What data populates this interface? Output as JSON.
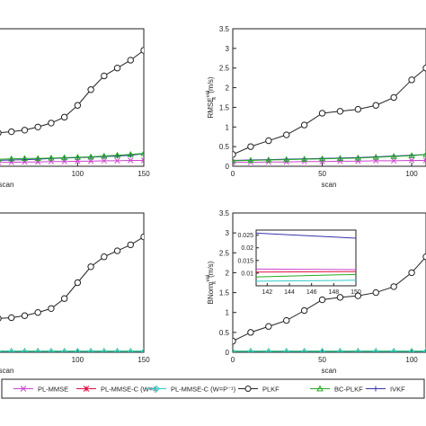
{
  "figure": {
    "legend": [
      {
        "name": "PL-MMSE",
        "color": "#cc44cc",
        "marker": "x"
      },
      {
        "name": "PL-MMSE-C (W=I)",
        "color": "#dd1144",
        "marker": "star"
      },
      {
        "name": "PL-MMSE-C (W=P⁻¹)",
        "color": "#33cccc",
        "marker": "diamond"
      },
      {
        "name": "PLKF",
        "color": "#222222",
        "marker": "circle"
      },
      {
        "name": "BC-PLKF",
        "color": "#22aa22",
        "marker": "triangle"
      },
      {
        "name": "IVKF",
        "color": "#3333aa",
        "marker": "plus"
      }
    ]
  },
  "chart_data": [
    {
      "type": "line",
      "title": "",
      "xlabel": "scan",
      "ylabel": "",
      "xlim": [
        40,
        150
      ],
      "ylim": [
        0,
        3.5
      ],
      "xticks": [
        100,
        150
      ],
      "yticks": [],
      "x": [
        40,
        50,
        60,
        70,
        80,
        90,
        100,
        110,
        120,
        130,
        140,
        150
      ],
      "series": [
        {
          "name": "PLKF",
          "values": [
            0.85,
            0.88,
            0.92,
            1.0,
            1.1,
            1.25,
            1.55,
            1.95,
            2.3,
            2.5,
            2.7,
            2.95
          ]
        },
        {
          "name": "IVKF",
          "values": [
            0.15,
            0.16,
            0.17,
            0.18,
            0.2,
            0.21,
            0.22,
            0.23,
            0.25,
            0.26,
            0.28,
            0.32
          ]
        },
        {
          "name": "PL-MMSE",
          "values": [
            0.1,
            0.1,
            0.11,
            0.11,
            0.12,
            0.12,
            0.13,
            0.13,
            0.14,
            0.14,
            0.15,
            0.15
          ]
        },
        {
          "name": "BC-PLKF",
          "values": [
            0.18,
            0.19,
            0.2,
            0.2,
            0.21,
            0.22,
            0.23,
            0.24,
            0.26,
            0.28,
            0.3,
            0.33
          ]
        }
      ]
    },
    {
      "type": "line",
      "title": "",
      "xlabel": "scan",
      "ylabel": "RMSE_k^vel (m/s)",
      "xlim": [
        0,
        108
      ],
      "ylim": [
        0,
        3.5
      ],
      "xticks": [
        0,
        50,
        100
      ],
      "yticks": [
        0,
        0.5,
        1,
        1.5,
        2,
        2.5,
        3,
        3.5
      ],
      "x": [
        0,
        10,
        20,
        30,
        40,
        50,
        60,
        70,
        80,
        90,
        100,
        108
      ],
      "series": [
        {
          "name": "PLKF",
          "values": [
            0.3,
            0.5,
            0.65,
            0.8,
            1.05,
            1.35,
            1.4,
            1.45,
            1.55,
            1.75,
            2.2,
            2.5
          ]
        },
        {
          "name": "IVKF",
          "values": [
            0.15,
            0.16,
            0.17,
            0.18,
            0.19,
            0.2,
            0.21,
            0.22,
            0.24,
            0.26,
            0.28,
            0.3
          ]
        },
        {
          "name": "PL-MMSE",
          "values": [
            0.1,
            0.1,
            0.11,
            0.11,
            0.12,
            0.12,
            0.13,
            0.13,
            0.14,
            0.14,
            0.15,
            0.15
          ]
        },
        {
          "name": "BC-PLKF",
          "values": [
            0.14,
            0.15,
            0.16,
            0.17,
            0.18,
            0.19,
            0.2,
            0.21,
            0.23,
            0.25,
            0.27,
            0.3
          ]
        }
      ]
    },
    {
      "type": "line",
      "title": "",
      "xlabel": "scan",
      "ylabel": "",
      "xlim": [
        40,
        150
      ],
      "ylim": [
        0,
        3.5
      ],
      "xticks": [
        100,
        150
      ],
      "yticks": [],
      "x": [
        40,
        50,
        60,
        70,
        80,
        90,
        100,
        110,
        120,
        130,
        140,
        150
      ],
      "series": [
        {
          "name": "PLKF",
          "values": [
            0.85,
            0.87,
            0.92,
            1.0,
            1.1,
            1.35,
            1.75,
            2.15,
            2.4,
            2.55,
            2.7,
            2.9
          ]
        },
        {
          "name": "BC-PLKF",
          "values": [
            0.03,
            0.03,
            0.03,
            0.03,
            0.03,
            0.03,
            0.03,
            0.03,
            0.03,
            0.03,
            0.03,
            0.03
          ]
        },
        {
          "name": "PL-MMSE-C (W=P⁻¹)",
          "values": [
            0.02,
            0.02,
            0.02,
            0.02,
            0.02,
            0.02,
            0.02,
            0.02,
            0.02,
            0.02,
            0.02,
            0.02
          ]
        }
      ]
    },
    {
      "type": "line",
      "title": "",
      "xlabel": "scan",
      "ylabel": "BNorm_k^vel (m/s)",
      "xlim": [
        0,
        108
      ],
      "ylim": [
        0,
        3.5
      ],
      "xticks": [
        0,
        50,
        100
      ],
      "yticks": [
        0,
        0.5,
        1,
        1.5,
        2,
        2.5,
        3,
        3.5
      ],
      "x": [
        0,
        10,
        20,
        30,
        40,
        50,
        60,
        70,
        80,
        90,
        100,
        108
      ],
      "series": [
        {
          "name": "PLKF",
          "values": [
            0.28,
            0.5,
            0.65,
            0.8,
            1.05,
            1.32,
            1.38,
            1.42,
            1.5,
            1.65,
            2.0,
            2.4
          ]
        },
        {
          "name": "BC-PLKF",
          "values": [
            0.03,
            0.03,
            0.03,
            0.03,
            0.03,
            0.03,
            0.03,
            0.03,
            0.03,
            0.03,
            0.03,
            0.03
          ]
        },
        {
          "name": "PL-MMSE-C (W=P⁻¹)",
          "values": [
            0.02,
            0.02,
            0.02,
            0.02,
            0.02,
            0.02,
            0.02,
            0.02,
            0.02,
            0.02,
            0.02,
            0.02
          ]
        }
      ],
      "inset": {
        "xlim": [
          141,
          150
        ],
        "ylim": [
          0.005,
          0.027
        ],
        "xticks": [
          142,
          144,
          146,
          148,
          150
        ],
        "yticks": [
          0.01,
          0.015,
          0.02,
          0.025
        ],
        "ytick_labels": [
          "0.01",
          "0.015",
          "0.02",
          "0.025"
        ],
        "x": [
          141,
          150
        ],
        "series": [
          {
            "name": "IVKF",
            "values": [
              0.0258,
              0.0238
            ]
          },
          {
            "name": "PL-MMSE",
            "values": [
              0.0116,
              0.0114
            ]
          },
          {
            "name": "PL-MMSE-C (W=I)",
            "values": [
              0.0104,
              0.0106
            ]
          },
          {
            "name": "BC-PLKF",
            "values": [
              0.0085,
              0.0095
            ]
          },
          {
            "name": "PL-MMSE-C (W=P⁻¹)",
            "values": [
              0.0068,
              0.0072
            ]
          }
        ]
      }
    }
  ]
}
